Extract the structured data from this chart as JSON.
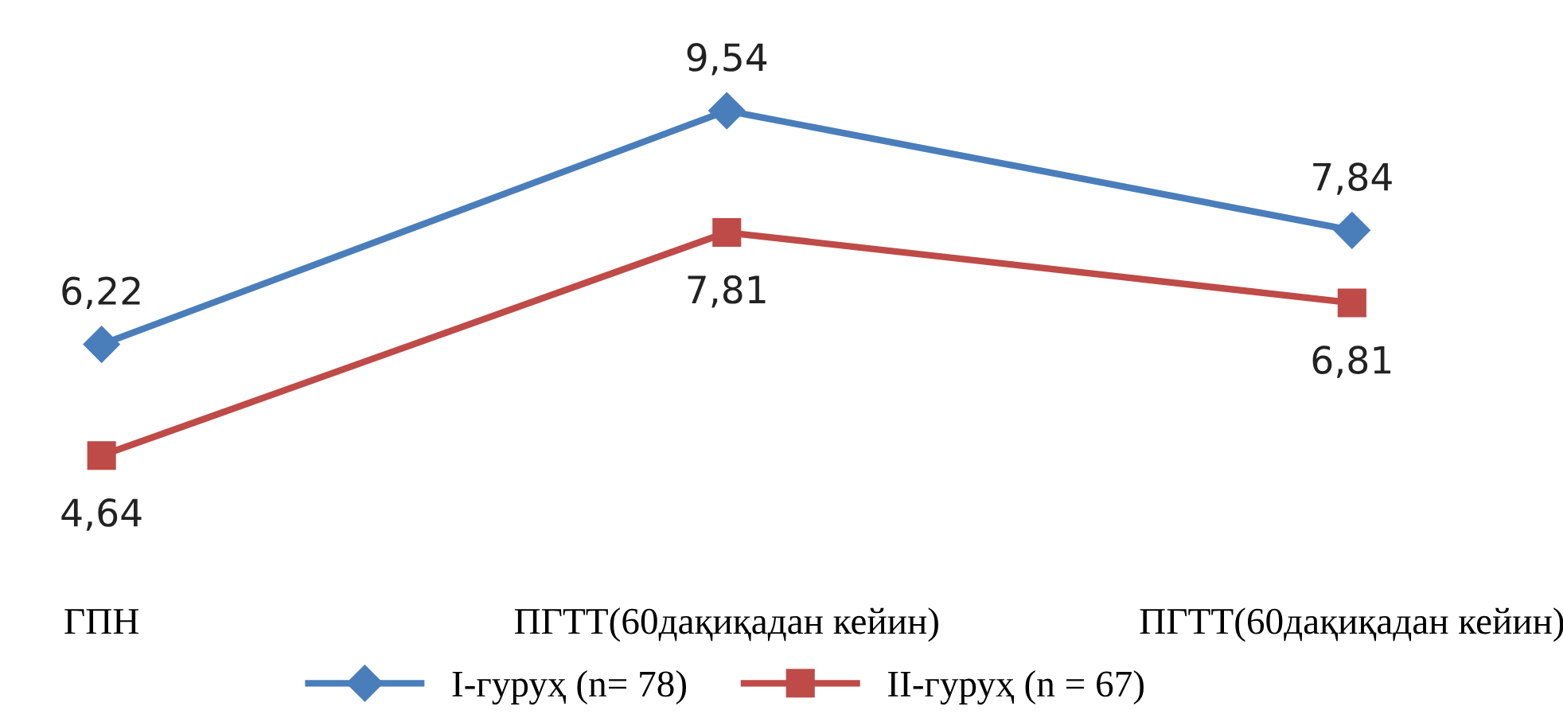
{
  "chart_data": {
    "type": "line",
    "categories": [
      "ГПН",
      "ПГТТ(60дақиқадан кейин)",
      "ПГТТ(60дақиқадан кейин)"
    ],
    "series": [
      {
        "name": "I-гуруҳ (n= 78)",
        "color": "#4a7ebb",
        "values": [
          6.22,
          9.54,
          7.84
        ],
        "value_labels": [
          "6,22",
          "9,54",
          "7,84"
        ],
        "marker": "diamond"
      },
      {
        "name": "II-гуруҳ (n = 67)",
        "color": "#be4b48",
        "values": [
          4.64,
          7.81,
          6.81
        ],
        "value_labels": [
          "4,64",
          "7,81",
          "6,81"
        ],
        "marker": "square"
      }
    ],
    "tick_labels": "x",
    "legend": "bottom",
    "grid": false,
    "line_style": "solid"
  }
}
